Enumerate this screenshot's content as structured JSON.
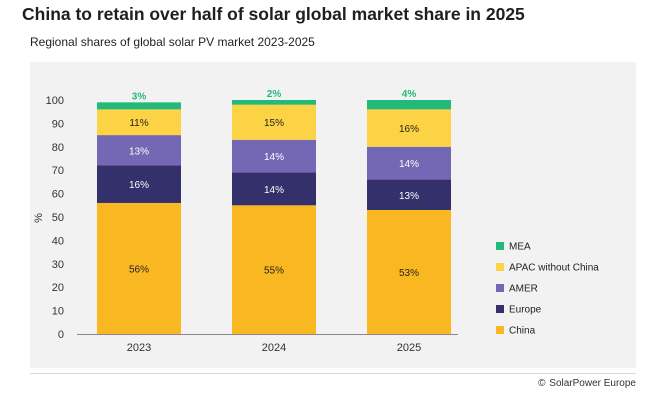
{
  "title": "China to retain over half of solar global market share in 2025",
  "subtitle": "Regional shares of global solar PV market 2023-2025",
  "source": "SolarPower Europe",
  "source_symbol": "©",
  "colors": {
    "China": "#f9b822",
    "Europe": "#33306b",
    "AMER": "#7468b4",
    "APAC without China": "#fdd346",
    "MEA": "#23b97a",
    "label_dark": "#1f1f1f",
    "label_light": "#ffffff",
    "label_mea": "#23b97a"
  },
  "chart_data": {
    "type": "bar",
    "stacked": true,
    "title": "China to retain over half of solar global market share in 2025",
    "subtitle": "Regional shares of global solar PV market 2023-2025",
    "categories": [
      "2023",
      "2024",
      "2025"
    ],
    "xlabel": "",
    "ylabel": "%",
    "ylim": [
      0,
      100
    ],
    "yticks": [
      0,
      10,
      20,
      30,
      40,
      50,
      60,
      70,
      80,
      90,
      100
    ],
    "grid": false,
    "legend_position": "right",
    "series": [
      {
        "name": "China",
        "values": [
          56,
          55,
          53
        ],
        "labels": [
          "56%",
          "55%",
          "53%"
        ]
      },
      {
        "name": "Europe",
        "values": [
          16,
          14,
          13
        ],
        "labels": [
          "16%",
          "14%",
          "13%"
        ]
      },
      {
        "name": "AMER",
        "values": [
          13,
          14,
          14
        ],
        "labels": [
          "13%",
          "14%",
          "14%"
        ]
      },
      {
        "name": "APAC without China",
        "values": [
          11,
          15,
          16
        ],
        "labels": [
          "11%",
          "15%",
          "16%"
        ]
      },
      {
        "name": "MEA",
        "values": [
          3,
          2,
          4
        ],
        "labels": [
          "3%",
          "2%",
          "4%"
        ]
      }
    ],
    "legend": [
      "MEA",
      "APAC without China",
      "AMER",
      "Europe",
      "China"
    ]
  }
}
